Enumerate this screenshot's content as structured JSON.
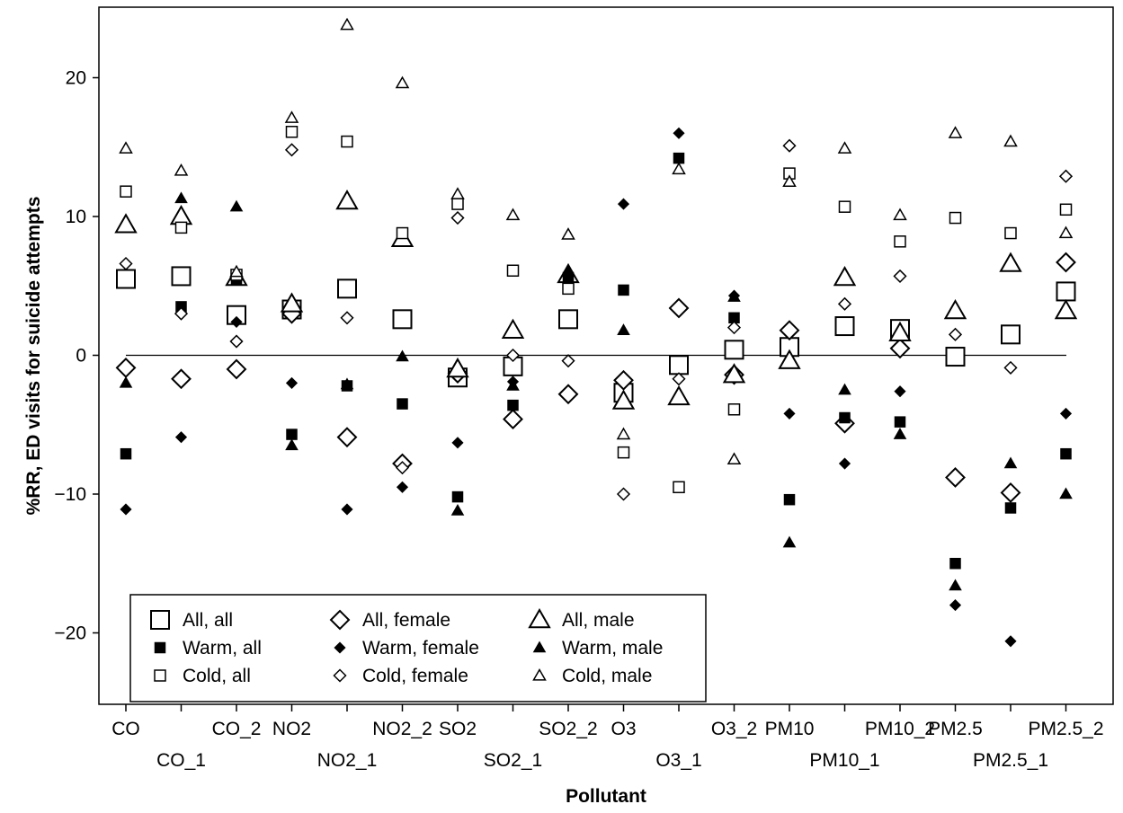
{
  "chart_data": {
    "type": "scatter",
    "title": "",
    "xlabel": "Pollutant",
    "ylabel": "%RR, ED visits for suicide attempts",
    "categories": [
      "CO",
      "CO_1",
      "CO_2",
      "NO2",
      "NO2_1",
      "NO2_2",
      "SO2",
      "SO2_1",
      "SO2_2",
      "O3",
      "O3_1",
      "O3_2",
      "PM10",
      "PM10_1",
      "PM10_2",
      "PM2.5",
      "PM2.5_1",
      "PM2.5_2"
    ],
    "ylim": [
      -25,
      25
    ],
    "yticks": [
      -20,
      -10,
      0,
      10,
      20
    ],
    "ytick_labels": [
      "−20",
      "−10",
      "0",
      "10",
      "20"
    ],
    "reference_line": 0,
    "grid": false,
    "legend_position": "bottom-left",
    "series": [
      {
        "name": "All, all",
        "marker": "square-open-large",
        "values": [
          5.5,
          5.7,
          2.9,
          3.3,
          4.8,
          2.6,
          -1.6,
          -0.8,
          2.6,
          -2.7,
          -0.7,
          0.4,
          0.6,
          2.1,
          1.9,
          -0.1,
          1.5,
          4.6
        ]
      },
      {
        "name": "All, female",
        "marker": "diamond-open-large",
        "values": [
          -0.9,
          -1.7,
          -1.0,
          3.0,
          -5.9,
          -7.8,
          -1.3,
          -4.6,
          -2.8,
          -1.8,
          3.4,
          -1.4,
          1.8,
          -4.9,
          0.5,
          -8.8,
          -9.9,
          6.7
        ]
      },
      {
        "name": "All, male",
        "marker": "triangle-open-large",
        "values": [
          9.4,
          10.0,
          5.6,
          3.7,
          11.1,
          8.4,
          -1.0,
          1.8,
          5.8,
          -3.3,
          -3.0,
          -1.4,
          -0.4,
          5.6,
          1.6,
          3.2,
          6.6,
          3.2
        ]
      },
      {
        "name": "Warm, all",
        "marker": "square-filled-small",
        "values": [
          -7.1,
          3.5,
          5.5,
          -5.7,
          -2.2,
          -3.5,
          -10.2,
          -3.6,
          5.6,
          4.7,
          14.2,
          2.7,
          -10.4,
          -4.5,
          -4.8,
          -15.0,
          -11.0,
          -7.1
        ]
      },
      {
        "name": "Warm, female",
        "marker": "diamond-filled-small",
        "values": [
          -11.1,
          -5.9,
          2.4,
          -2.0,
          -11.1,
          -9.5,
          -6.3,
          -1.9,
          5.7,
          10.9,
          16.0,
          4.3,
          -4.2,
          -7.8,
          -2.6,
          -18.0,
          -20.6,
          -4.2
        ]
      },
      {
        "name": "Warm, male",
        "marker": "triangle-filled-small",
        "values": [
          -2.0,
          11.3,
          10.7,
          -6.5,
          -2.1,
          -0.1,
          -11.2,
          -2.2,
          6.0,
          1.8,
          13.4,
          4.2,
          -13.5,
          -2.5,
          -5.7,
          -16.6,
          -7.8,
          -10.0
        ]
      },
      {
        "name": "Cold, all",
        "marker": "square-open-small",
        "values": [
          11.8,
          9.2,
          5.8,
          16.1,
          15.4,
          8.8,
          10.9,
          6.1,
          4.8,
          -7.0,
          -9.5,
          -3.9,
          13.1,
          10.7,
          8.2,
          9.9,
          8.8,
          10.5
        ]
      },
      {
        "name": "Cold, female",
        "marker": "diamond-open-small",
        "values": [
          6.6,
          3.0,
          1.0,
          14.8,
          2.7,
          -8.1,
          9.9,
          0.0,
          -0.4,
          -10.0,
          -1.7,
          2.0,
          15.1,
          3.7,
          5.7,
          1.5,
          -0.9,
          12.9
        ]
      },
      {
        "name": "Cold, male",
        "marker": "triangle-open-small",
        "values": [
          14.9,
          13.3,
          6.0,
          17.1,
          23.8,
          19.6,
          11.6,
          10.1,
          8.7,
          -5.7,
          13.4,
          -7.5,
          12.5,
          14.9,
          10.1,
          16.0,
          15.4,
          8.8
        ]
      }
    ]
  },
  "legend": {
    "items": [
      {
        "label": "All, all",
        "marker": "square-open-large"
      },
      {
        "label": "All, female",
        "marker": "diamond-open-large"
      },
      {
        "label": "All, male",
        "marker": "triangle-open-large"
      },
      {
        "label": "Warm, all",
        "marker": "square-filled-small"
      },
      {
        "label": "Warm, female",
        "marker": "diamond-filled-small"
      },
      {
        "label": "Warm, male",
        "marker": "triangle-filled-small"
      },
      {
        "label": "Cold, all",
        "marker": "square-open-small"
      },
      {
        "label": "Cold, female",
        "marker": "diamond-open-small"
      },
      {
        "label": "Cold, male",
        "marker": "triangle-open-small"
      }
    ]
  }
}
